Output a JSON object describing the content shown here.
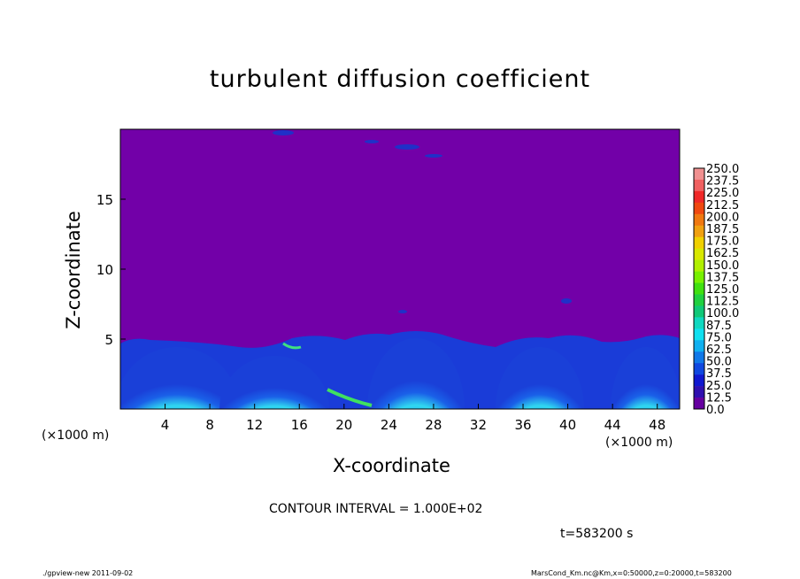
{
  "chart_data": {
    "type": "heatmap",
    "title": "turbulent diffusion coefficient",
    "xlabel": "X-coordinate",
    "ylabel": "Z-coordinate",
    "x_unit": "(×1000 m)",
    "xlim": [
      0,
      50
    ],
    "ylim": [
      0,
      20
    ],
    "x_ticks": [
      4,
      8,
      12,
      16,
      20,
      24,
      28,
      32,
      36,
      40,
      44,
      48
    ],
    "y_ticks": [
      5,
      10,
      15
    ],
    "colorbar": {
      "levels": [
        "250.0",
        "237.5",
        "225.0",
        "212.5",
        "200.0",
        "187.5",
        "175.0",
        "162.5",
        "150.0",
        "137.5",
        "125.0",
        "112.5",
        "100.0",
        "87.5",
        "75.0",
        "62.5",
        "50.0",
        "37.5",
        "25.0",
        "12.5",
        "0.0"
      ],
      "colors": [
        "#f09090",
        "#f06060",
        "#f02828",
        "#f04810",
        "#f07810",
        "#f0a010",
        "#f0d000",
        "#d8e800",
        "#b0f000",
        "#78f000",
        "#40e010",
        "#20d040",
        "#10c878",
        "#10d8c0",
        "#10e0f0",
        "#10b0f0",
        "#1078e8",
        "#1048e0",
        "#1018d0",
        "#3010b0",
        "#6600a0"
      ]
    },
    "background_value_color": "#7200a8",
    "contour_interval_text": "CONTOUR INTERVAL = 1.000E+02",
    "time_text": "t=583200 s"
  },
  "footer": {
    "left": "./gpview-new 2011-09-02",
    "right": "MarsCond_Km.nc@Km,x=0:50000,z=0:20000,t=583200"
  }
}
